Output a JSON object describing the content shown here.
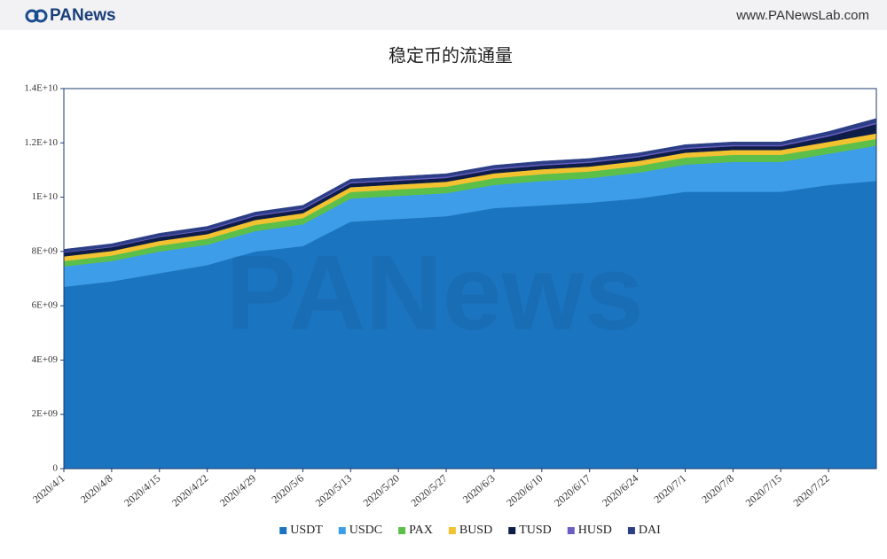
{
  "header": {
    "logo": "PANews",
    "url": "www.PANewsLab.com"
  },
  "chart_data": {
    "type": "stacked-area",
    "title": "稳定币的流通量",
    "watermark": "PANews",
    "categories": [
      "2020/4/1",
      "2020/4/8",
      "2020/4/15",
      "2020/4/22",
      "2020/4/29",
      "2020/5/6",
      "2020/5/13",
      "2020/5/20",
      "2020/5/27",
      "2020/6/3",
      "2020/6/10",
      "2020/6/17",
      "2020/6/24",
      "2020/7/1",
      "2020/7/8",
      "2020/7/15",
      "2020/7/22",
      null
    ],
    "series": [
      {
        "name": "USDT",
        "color": "#1b74bf",
        "values": [
          6700000000,
          6900000000,
          7200000000,
          7500000000,
          8000000000,
          8200000000,
          9100000000,
          9200000000,
          9300000000,
          9600000000,
          9700000000,
          9800000000,
          9950000000,
          10200000000,
          10200000000,
          10200000000,
          10450000000,
          10600000000
        ]
      },
      {
        "name": "USDC",
        "color": "#3d9de8",
        "values": [
          750000000,
          750000000,
          800000000,
          750000000,
          750000000,
          800000000,
          850000000,
          850000000,
          850000000,
          850000000,
          900000000,
          900000000,
          950000000,
          1000000000,
          1100000000,
          1100000000,
          1150000000,
          1300000000
        ]
      },
      {
        "name": "PAX",
        "color": "#5cbf4a",
        "values": [
          200000000,
          200000000,
          220000000,
          220000000,
          230000000,
          230000000,
          240000000,
          240000000,
          240000000,
          250000000,
          250000000,
          250000000,
          250000000,
          260000000,
          260000000,
          260000000,
          250000000,
          250000000
        ]
      },
      {
        "name": "BUSD",
        "color": "#f2c230",
        "values": [
          170000000,
          170000000,
          170000000,
          170000000,
          180000000,
          180000000,
          180000000,
          180000000,
          180000000,
          180000000,
          180000000,
          180000000,
          180000000,
          180000000,
          180000000,
          180000000,
          190000000,
          200000000
        ]
      },
      {
        "name": "TUSD",
        "color": "#0e1d48",
        "values": [
          140000000,
          140000000,
          140000000,
          140000000,
          140000000,
          140000000,
          140000000,
          140000000,
          140000000,
          140000000,
          140000000,
          140000000,
          140000000,
          140000000,
          140000000,
          140000000,
          200000000,
          350000000
        ]
      },
      {
        "name": "HUSD",
        "color": "#6a5fc1",
        "values": [
          20000000,
          25000000,
          30000000,
          35000000,
          40000000,
          40000000,
          45000000,
          45000000,
          45000000,
          45000000,
          45000000,
          45000000,
          45000000,
          45000000,
          45000000,
          45000000,
          50000000,
          50000000
        ]
      },
      {
        "name": "DAI",
        "color": "#2c3e86",
        "values": [
          100000000,
          100000000,
          110000000,
          110000000,
          110000000,
          110000000,
          110000000,
          110000000,
          110000000,
          110000000,
          110000000,
          110000000,
          110000000,
          110000000,
          110000000,
          110000000,
          130000000,
          150000000
        ]
      }
    ],
    "ylim": [
      0,
      14000000000
    ],
    "yticks": [
      0,
      {
        "value": 2000000000,
        "label": "2E+09"
      },
      {
        "value": 4000000000,
        "label": "4E+09"
      },
      {
        "value": 6000000000,
        "label": "6E+09"
      },
      {
        "value": 8000000000,
        "label": "8E+09"
      },
      {
        "value": 10000000000,
        "label": "1E+10"
      },
      {
        "value": 12000000000,
        "label": "1.2E+10"
      },
      {
        "value": 14000000000,
        "label": "1.4E+10"
      }
    ],
    "grid": false,
    "legend": "bottom"
  }
}
